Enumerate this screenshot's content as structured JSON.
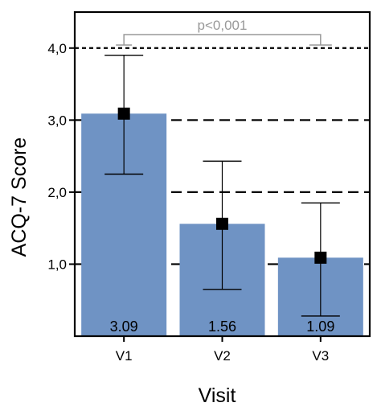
{
  "chart_data": {
    "type": "bar",
    "title": "",
    "xlabel": "Visit",
    "ylabel": "ACQ-7 Score",
    "categories": [
      "V1",
      "V2",
      "V3"
    ],
    "values": [
      3.09,
      1.56,
      1.09
    ],
    "value_labels": [
      "3.09",
      "1.56",
      "1.09"
    ],
    "error_low": [
      2.25,
      0.65,
      0.28
    ],
    "error_high": [
      3.9,
      2.43,
      1.85
    ],
    "yticks": [
      1.0,
      2.0,
      3.0,
      4.0
    ],
    "ytick_labels": [
      "1,0",
      "2,0",
      "3,0",
      "4,0"
    ],
    "ylim": [
      0,
      4.5
    ],
    "grid": "dashed horizontal lines at 1.0, 2.0, 3.0, 4.0",
    "annotation": {
      "text": "p<0,001",
      "from": "V1",
      "to": "V3"
    },
    "colors": {
      "bar": "#6f93c4",
      "marker": "#000000",
      "grid": "#000000",
      "bracket": "#999999"
    }
  }
}
